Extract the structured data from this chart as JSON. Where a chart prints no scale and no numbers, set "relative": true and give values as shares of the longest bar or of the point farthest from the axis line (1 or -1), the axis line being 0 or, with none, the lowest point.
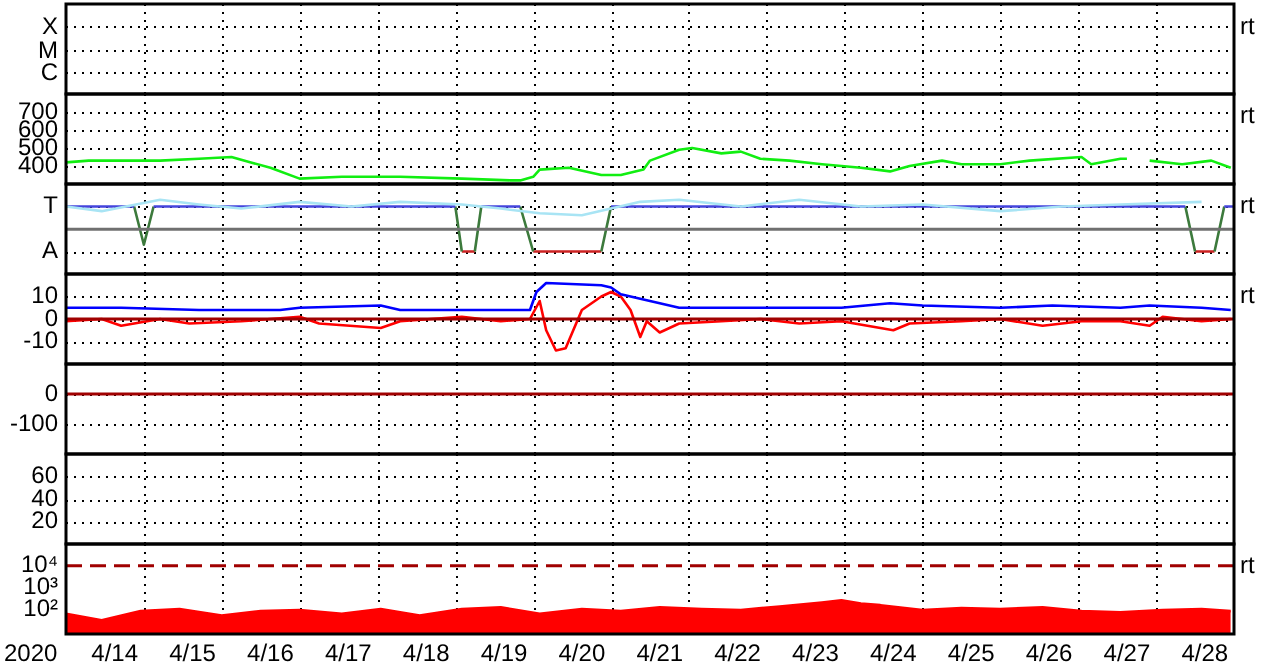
{
  "chart_data": [
    {
      "type": "other",
      "y_categories": [
        "X",
        "M",
        "C"
      ],
      "annotations": [
        "rt"
      ]
    },
    {
      "type": "line",
      "xlim": [
        "2020-04-13T09:00",
        "2020-04-28T09:00"
      ],
      "xticks": [
        {
          "value": "2020-04-14T09:00",
          "label": null
        },
        {
          "value": "2020-04-15T09:00",
          "label": null
        },
        {
          "value": "2020-04-16T09:00",
          "label": null
        },
        {
          "value": "2020-04-17T09:00",
          "label": null
        },
        {
          "value": "2020-04-18T09:00",
          "label": null
        },
        {
          "value": "2020-04-19T09:00",
          "label": null
        },
        {
          "value": "2020-04-20T09:00",
          "label": null
        },
        {
          "value": "2020-04-21T09:00",
          "label": null
        },
        {
          "value": "2020-04-22T09:00",
          "label": null
        },
        {
          "value": "2020-04-23T09:00",
          "label": null
        },
        {
          "value": "2020-04-24T09:00",
          "label": null
        },
        {
          "value": "2020-04-25T09:00",
          "label": null
        },
        {
          "value": "2020-04-26T09:00",
          "label": null
        },
        {
          "value": "2020-04-27T09:00",
          "label": null
        }
      ],
      "ylim": [
        300,
        800
      ],
      "yticks": [
        400,
        500,
        600,
        700
      ],
      "grid": true,
      "tick_labels": "y",
      "annotations": [
        "rt"
      ],
      "series": [
        {
          "color": "#11ee11",
          "x": [
            "2020-04-13T09:00",
            "2020-04-13T16:00",
            "2020-04-14T02:00",
            "2020-04-14T14:00",
            "2020-04-15T02:00",
            "2020-04-15T12:00",
            "2020-04-15T18:00",
            "2020-04-16T00:00",
            "2020-04-16T09:00",
            "2020-04-16T22:00",
            "2020-04-17T16:00",
            "2020-04-18T11:00",
            "2020-04-19T02:00",
            "2020-04-19T05:00",
            "2020-04-19T09:00",
            "2020-04-19T11:00",
            "2020-04-19T20:00",
            "2020-04-20T06:00",
            "2020-04-20T12:00",
            "2020-04-20T19:00",
            "2020-04-20T21:00",
            "2020-04-21T06:00",
            "2020-04-21T10:00",
            "2020-04-21T19:00",
            "2020-04-22T01:00",
            "2020-04-22T07:00",
            "2020-04-22T16:00",
            "2020-04-23T02:00",
            "2020-04-23T14:00",
            "2020-04-23T23:00",
            "2020-04-24T05:00",
            "2020-04-24T15:00",
            "2020-04-24T21:00",
            "2020-04-25T09:00",
            "2020-04-25T18:00",
            "2020-04-26T10:00",
            "2020-04-26T13:00",
            "2020-04-26T22:00",
            "2020-04-27T00:00",
            "2020-04-27T04:00",
            "2020-04-27T07:00",
            "2020-04-27T17:00",
            "2020-04-28T02:00",
            "2020-04-28T08:00"
          ],
          "values": [
            420,
            430,
            430,
            430,
            440,
            450,
            420,
            390,
            330,
            340,
            340,
            330,
            320,
            320,
            340,
            380,
            390,
            350,
            350,
            380,
            430,
            490,
            500,
            470,
            480,
            440,
            430,
            410,
            390,
            370,
            400,
            430,
            410,
            410,
            430,
            450,
            410,
            440,
            440,
            null,
            430,
            410,
            430,
            390
          ]
        }
      ]
    },
    {
      "type": "line",
      "xlim": [
        "2020-04-13T09:00",
        "2020-04-28T09:00"
      ],
      "xticks": [
        {
          "value": "2020-04-14T09:00",
          "label": null
        },
        {
          "value": "2020-04-15T09:00",
          "label": null
        },
        {
          "value": "2020-04-16T09:00",
          "label": null
        },
        {
          "value": "2020-04-17T09:00",
          "label": null
        },
        {
          "value": "2020-04-18T09:00",
          "label": null
        },
        {
          "value": "2020-04-19T09:00",
          "label": null
        },
        {
          "value": "2020-04-20T09:00",
          "label": null
        },
        {
          "value": "2020-04-21T09:00",
          "label": null
        },
        {
          "value": "2020-04-22T09:00",
          "label": null
        },
        {
          "value": "2020-04-23T09:00",
          "label": null
        },
        {
          "value": "2020-04-24T09:00",
          "label": null
        },
        {
          "value": "2020-04-25T09:00",
          "label": null
        },
        {
          "value": "2020-04-26T09:00",
          "label": null
        },
        {
          "value": "2020-04-27T09:00",
          "label": null
        }
      ],
      "relative": true,
      "y_categories": [
        "T",
        null,
        "A"
      ],
      "grid": true,
      "tick_labels": "y",
      "annotations": [
        "rt"
      ],
      "ref_lines": [
        {
          "axis": "y",
          "value": 0.43,
          "color": "#707070"
        }
      ],
      "series": [
        {
          "color": "#a8e4f4",
          "x": [
            "2020-04-13T09:00",
            "2020-04-13T20:00",
            "2020-04-14T14:00",
            "2020-04-15T02:00",
            "2020-04-15T15:00",
            "2020-04-16T09:00",
            "2020-04-17T01:00",
            "2020-04-17T16:00",
            "2020-04-18T11:00",
            "2020-04-18T23:00",
            "2020-04-19T11:00",
            "2020-04-20T00:00",
            "2020-04-20T18:00",
            "2020-04-21T06:00",
            "2020-04-22T01:00",
            "2020-04-22T19:00",
            "2020-04-23T14:00",
            "2020-04-24T09:00",
            "2020-04-25T09:00",
            "2020-04-26T04:00",
            "2020-04-26T22:00",
            "2020-04-27T23:00"
          ],
          "values": [
            0.87,
            0.78,
            1,
            0.91,
            0.83,
            0.96,
            0.87,
            0.96,
            0.91,
            0.83,
            0.74,
            0.7,
            0.96,
            1,
            0.87,
            1,
            0.87,
            0.91,
            0.78,
            0.87,
            0.91,
            0.96
          ]
        },
        {
          "color": "#4444dd",
          "x": [
            "2020-04-13T09:00",
            "2020-04-14T06:00",
            "2020-04-14T09:00",
            "2020-04-14T12:00",
            "2020-04-18T09:00",
            "2020-04-18T13:00",
            "2020-04-18T17:00",
            "2020-04-19T05:00",
            "2020-04-19T20:00",
            "2020-04-20T09:00",
            "2020-04-27T18:00",
            "2020-04-28T00:00",
            "2020-04-28T06:00",
            "2020-04-28T09:00"
          ],
          "values": [
            0.87,
            0.87,
            null,
            0.87,
            0.87,
            null,
            0.87,
            0.87,
            null,
            0.87,
            0.87,
            null,
            0.87,
            0.87
          ]
        },
        {
          "color": "#3c7a3c",
          "x": [
            "2020-04-14T06:00",
            "2020-04-14T09:00",
            "2020-04-14T12:00",
            "2020-04-16T00:00",
            "2020-04-18T09:00",
            "2020-04-18T11:00",
            "2020-04-18T13:00",
            "2020-04-18T15:00",
            "2020-04-18T17:00",
            "2020-04-19T00:00",
            "2020-04-19T05:00",
            "2020-04-19T09:00",
            "2020-04-19T20:00",
            "2020-04-20T06:00",
            "2020-04-20T09:00",
            "2020-04-24T00:00",
            "2020-04-27T18:00",
            "2020-04-27T21:00",
            "2020-04-28T00:00",
            "2020-04-28T03:00",
            "2020-04-28T06:00"
          ],
          "values": [
            0.87,
            0.13,
            0.87,
            null,
            0.87,
            0,
            null,
            0,
            0.87,
            null,
            0.87,
            0,
            null,
            0,
            0.87,
            null,
            0.87,
            0,
            null,
            0,
            0.87
          ]
        },
        {
          "color": "#cc2222",
          "x": [
            "2020-04-18T11:00",
            "2020-04-18T15:00",
            "2020-04-18T17:00",
            "2020-04-19T09:00",
            "2020-04-20T06:00",
            "2020-04-24T00:00",
            "2020-04-27T21:00",
            "2020-04-28T03:00"
          ],
          "values": [
            0,
            0,
            null,
            0,
            0,
            null,
            0,
            0
          ]
        }
      ]
    },
    {
      "type": "line",
      "xlim": [
        "2020-04-13T09:00",
        "2020-04-28T09:00"
      ],
      "xticks": [
        {
          "value": "2020-04-14T09:00",
          "label": null
        },
        {
          "value": "2020-04-15T09:00",
          "label": null
        },
        {
          "value": "2020-04-16T09:00",
          "label": null
        },
        {
          "value": "2020-04-17T09:00",
          "label": null
        },
        {
          "value": "2020-04-18T09:00",
          "label": null
        },
        {
          "value": "2020-04-19T09:00",
          "label": null
        },
        {
          "value": "2020-04-20T09:00",
          "label": null
        },
        {
          "value": "2020-04-21T09:00",
          "label": null
        },
        {
          "value": "2020-04-22T09:00",
          "label": null
        },
        {
          "value": "2020-04-23T09:00",
          "label": null
        },
        {
          "value": "2020-04-24T09:00",
          "label": null
        },
        {
          "value": "2020-04-25T09:00",
          "label": null
        },
        {
          "value": "2020-04-26T09:00",
          "label": null
        },
        {
          "value": "2020-04-27T09:00",
          "label": null
        }
      ],
      "ylim": [
        -20,
        20
      ],
      "yticks": [
        10,
        0,
        -10
      ],
      "grid": true,
      "tick_labels": "y",
      "annotations": [
        "rt"
      ],
      "ref_lines": [
        {
          "axis": "y",
          "value": 0,
          "color": "#a00000"
        }
      ],
      "series": [
        {
          "color": "#0000ff",
          "x": [
            "2020-04-13T09:00",
            "2020-04-14T02:00",
            "2020-04-15T02:00",
            "2020-04-16T03:00",
            "2020-04-16T09:00",
            "2020-04-17T10:00",
            "2020-04-17T16:00",
            "2020-04-18T23:00",
            "2020-04-19T08:00",
            "2020-04-19T10:00",
            "2020-04-19T13:00",
            "2020-04-20T06:00",
            "2020-04-20T09:00",
            "2020-04-20T12:00",
            "2020-04-20T21:00",
            "2020-04-21T06:00",
            "2020-04-22T07:00",
            "2020-04-23T08:00",
            "2020-04-23T23:00",
            "2020-04-24T09:00",
            "2020-04-25T09:00",
            "2020-04-26T01:00",
            "2020-04-26T22:00",
            "2020-04-27T07:00",
            "2020-04-27T23:00",
            "2020-04-28T08:00"
          ],
          "values": [
            5,
            5,
            4,
            4,
            5,
            6,
            4,
            4,
            4,
            12,
            16,
            15,
            14,
            11,
            8,
            5,
            5,
            5,
            7,
            6,
            5,
            6,
            5,
            6,
            5,
            4
          ]
        },
        {
          "color": "#ff0000",
          "x": [
            "2020-04-13T09:00",
            "2020-04-13T20:00",
            "2020-04-14T02:00",
            "2020-04-14T14:00",
            "2020-04-14T23:00",
            "2020-04-15T15:00",
            "2020-04-16T09:00",
            "2020-04-16T15:00",
            "2020-04-17T10:00",
            "2020-04-17T16:00",
            "2020-04-18T11:00",
            "2020-04-18T23:00",
            "2020-04-19T08:00",
            "2020-04-19T11:00",
            "2020-04-19T13:00",
            "2020-04-19T16:00",
            "2020-04-19T19:00",
            "2020-04-20T00:00",
            "2020-04-20T06:00",
            "2020-04-20T09:00",
            "2020-04-20T12:00",
            "2020-04-20T15:00",
            "2020-04-20T18:00",
            "2020-04-20T20:00",
            "2020-04-21T00:00",
            "2020-04-21T06:00",
            "2020-04-21T19:00",
            "2020-04-22T07:00",
            "2020-04-22T19:00",
            "2020-04-23T08:00",
            "2020-04-24T00:00",
            "2020-04-24T05:00",
            "2020-04-24T21:00",
            "2020-04-25T09:00",
            "2020-04-25T22:00",
            "2020-04-26T10:00",
            "2020-04-26T22:00",
            "2020-04-27T07:00",
            "2020-04-27T11:00",
            "2020-04-27T23:00",
            "2020-04-28T08:00"
          ],
          "values": [
            -1,
            0,
            -3,
            0,
            -2,
            -1,
            1,
            -2,
            -4,
            -1,
            1,
            -1,
            0,
            8,
            -5,
            -14,
            -13,
            4,
            10,
            12,
            10,
            4,
            -8,
            -1,
            -6,
            -2,
            -1,
            0,
            -2,
            -1,
            -5,
            -2,
            -1,
            0,
            -3,
            -1,
            -1,
            -3,
            1,
            -1,
            0
          ]
        }
      ]
    },
    {
      "type": "line",
      "xlim": [
        "2020-04-13T09:00",
        "2020-04-28T09:00"
      ],
      "xticks": [
        {
          "value": "2020-04-14T09:00",
          "label": null
        },
        {
          "value": "2020-04-15T09:00",
          "label": null
        },
        {
          "value": "2020-04-16T09:00",
          "label": null
        },
        {
          "value": "2020-04-17T09:00",
          "label": null
        },
        {
          "value": "2020-04-18T09:00",
          "label": null
        },
        {
          "value": "2020-04-19T09:00",
          "label": null
        },
        {
          "value": "2020-04-20T09:00",
          "label": null
        },
        {
          "value": "2020-04-21T09:00",
          "label": null
        },
        {
          "value": "2020-04-22T09:00",
          "label": null
        },
        {
          "value": "2020-04-23T09:00",
          "label": null
        },
        {
          "value": "2020-04-24T09:00",
          "label": null
        },
        {
          "value": "2020-04-25T09:00",
          "label": null
        },
        {
          "value": "2020-04-26T09:00",
          "label": null
        },
        {
          "value": "2020-04-27T09:00",
          "label": null
        }
      ],
      "ylim": [
        -200,
        100
      ],
      "yticks": [
        0,
        -100
      ],
      "grid": true,
      "tick_labels": "y",
      "ref_lines": [
        {
          "axis": "y",
          "value": 0,
          "color": "#a00000"
        }
      ]
    },
    {
      "type": "line",
      "xlim": [
        "2020-04-13T09:00",
        "2020-04-28T09:00"
      ],
      "xticks": [
        {
          "value": "2020-04-14T09:00",
          "label": null
        },
        {
          "value": "2020-04-15T09:00",
          "label": null
        },
        {
          "value": "2020-04-16T09:00",
          "label": null
        },
        {
          "value": "2020-04-17T09:00",
          "label": null
        },
        {
          "value": "2020-04-18T09:00",
          "label": null
        },
        {
          "value": "2020-04-19T09:00",
          "label": null
        },
        {
          "value": "2020-04-20T09:00",
          "label": null
        },
        {
          "value": "2020-04-21T09:00",
          "label": null
        },
        {
          "value": "2020-04-22T09:00",
          "label": null
        },
        {
          "value": "2020-04-23T09:00",
          "label": null
        },
        {
          "value": "2020-04-24T09:00",
          "label": null
        },
        {
          "value": "2020-04-25T09:00",
          "label": null
        },
        {
          "value": "2020-04-26T09:00",
          "label": null
        },
        {
          "value": "2020-04-27T09:00",
          "label": null
        }
      ],
      "ylim": [
        0,
        80
      ],
      "yticks": [
        60,
        40,
        20
      ],
      "grid": true,
      "tick_labels": "y"
    },
    {
      "type": "area",
      "xlim": [
        "2020-04-13T09:00",
        "2020-04-28T09:00"
      ],
      "xticks": [
        {
          "value": "2020-04-14T00:00",
          "label": "4/14"
        },
        {
          "value": "2020-04-14T09:00",
          "label": null
        },
        {
          "value": "2020-04-15T00:00",
          "label": "4/15"
        },
        {
          "value": "2020-04-15T09:00",
          "label": null
        },
        {
          "value": "2020-04-16T00:00",
          "label": "4/16"
        },
        {
          "value": "2020-04-16T09:00",
          "label": null
        },
        {
          "value": "2020-04-17T00:00",
          "label": "4/17"
        },
        {
          "value": "2020-04-17T09:00",
          "label": null
        },
        {
          "value": "2020-04-18T00:00",
          "label": "4/18"
        },
        {
          "value": "2020-04-18T09:00",
          "label": null
        },
        {
          "value": "2020-04-19T00:00",
          "label": "4/19"
        },
        {
          "value": "2020-04-19T09:00",
          "label": null
        },
        {
          "value": "2020-04-20T00:00",
          "label": "4/20"
        },
        {
          "value": "2020-04-20T09:00",
          "label": null
        },
        {
          "value": "2020-04-21T00:00",
          "label": "4/21"
        },
        {
          "value": "2020-04-21T09:00",
          "label": null
        },
        {
          "value": "2020-04-22T00:00",
          "label": "4/22"
        },
        {
          "value": "2020-04-22T09:00",
          "label": null
        },
        {
          "value": "2020-04-23T00:00",
          "label": "4/23"
        },
        {
          "value": "2020-04-23T09:00",
          "label": null
        },
        {
          "value": "2020-04-24T00:00",
          "label": "4/24"
        },
        {
          "value": "2020-04-24T09:00",
          "label": null
        },
        {
          "value": "2020-04-25T00:00",
          "label": "4/25"
        },
        {
          "value": "2020-04-25T09:00",
          "label": null
        },
        {
          "value": "2020-04-26T00:00",
          "label": "4/26"
        },
        {
          "value": "2020-04-26T09:00",
          "label": null
        },
        {
          "value": "2020-04-27T00:00",
          "label": "4/27"
        },
        {
          "value": "2020-04-27T09:00",
          "label": null
        },
        {
          "value": "2020-04-28T00:00",
          "label": "4/28"
        }
      ],
      "log": true,
      "ylim": [
        7,
        100000
      ],
      "yticks": [
        {
          "value": 10000,
          "label": "10⁴"
        },
        {
          "value": 1000,
          "label": "10³"
        },
        {
          "value": 100,
          "label": "10²"
        }
      ],
      "grid": "x",
      "xlabel": "2020",
      "annotations": [
        "rt"
      ],
      "ref_lines": [
        {
          "axis": "y",
          "value": 10000,
          "color": "#a00000",
          "line_style": "dashed"
        }
      ],
      "series": [
        {
          "color": "#ff0000",
          "x": [
            "2020-04-13T09:00",
            "2020-04-13T20:00",
            "2020-04-14T08:00",
            "2020-04-14T20:00",
            "2020-04-15T09:00",
            "2020-04-15T21:00",
            "2020-04-16T09:00",
            "2020-04-16T22:00",
            "2020-04-17T10:00",
            "2020-04-17T22:00",
            "2020-04-18T11:00",
            "2020-04-18T23:00",
            "2020-04-19T11:00",
            "2020-04-20T00:00",
            "2020-04-20T12:00",
            "2020-04-21T00:00",
            "2020-04-21T13:00",
            "2020-04-22T01:00",
            "2020-04-22T13:00",
            "2020-04-23T02:00",
            "2020-04-23T08:00",
            "2020-04-23T14:00",
            "2020-04-23T20:00",
            "2020-04-24T09:00",
            "2020-04-24T21:00",
            "2020-04-25T09:00",
            "2020-04-25T22:00",
            "2020-04-26T10:00",
            "2020-04-26T22:00",
            "2020-04-27T11:00",
            "2020-04-27T23:00",
            "2020-04-28T08:00"
          ],
          "values": [
            60,
            30,
            80,
            100,
            50,
            80,
            90,
            60,
            100,
            50,
            100,
            120,
            60,
            100,
            80,
            120,
            100,
            90,
            130,
            200,
            250,
            180,
            150,
            90,
            110,
            100,
            120,
            80,
            70,
            90,
            100,
            80
          ]
        }
      ]
    }
  ]
}
